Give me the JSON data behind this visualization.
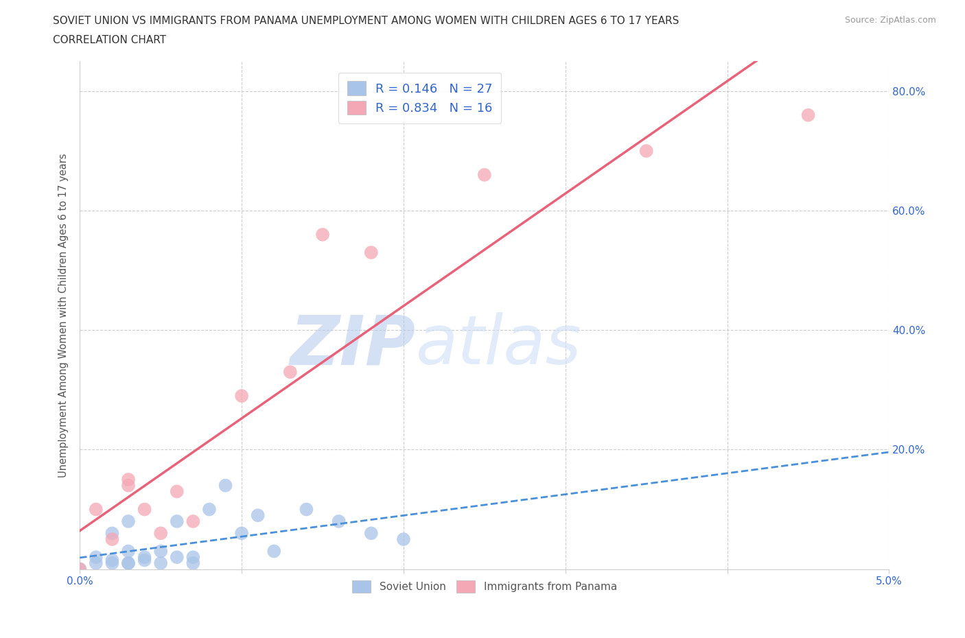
{
  "title_line1": "SOVIET UNION VS IMMIGRANTS FROM PANAMA UNEMPLOYMENT AMONG WOMEN WITH CHILDREN AGES 6 TO 17 YEARS",
  "title_line2": "CORRELATION CHART",
  "source_text": "Source: ZipAtlas.com",
  "ylabel": "Unemployment Among Women with Children Ages 6 to 17 years",
  "xlim": [
    0.0,
    0.05
  ],
  "ylim": [
    0.0,
    0.85
  ],
  "x_ticks": [
    0.0,
    0.01,
    0.02,
    0.03,
    0.04,
    0.05
  ],
  "x_tick_labels": [
    "0.0%",
    "",
    "",
    "",
    "",
    "5.0%"
  ],
  "y_ticks_right": [
    0.0,
    0.2,
    0.4,
    0.6,
    0.8
  ],
  "y_tick_labels_right": [
    "",
    "20.0%",
    "40.0%",
    "60.0%",
    "80.0%"
  ],
  "soviet_R": 0.146,
  "soviet_N": 27,
  "panama_R": 0.834,
  "panama_N": 16,
  "soviet_color": "#a8c4e8",
  "panama_color": "#f4a7b5",
  "soviet_line_color": "#4a90d9",
  "panama_line_color": "#e8637a",
  "background_color": "#ffffff",
  "watermark_zip": "ZIP",
  "watermark_atlas": "atlas",
  "watermark_color": "#c8d8f0",
  "soviet_x": [
    0.0,
    0.001,
    0.001,
    0.002,
    0.002,
    0.002,
    0.003,
    0.003,
    0.003,
    0.003,
    0.004,
    0.004,
    0.005,
    0.005,
    0.006,
    0.006,
    0.007,
    0.007,
    0.008,
    0.009,
    0.01,
    0.011,
    0.012,
    0.014,
    0.016,
    0.018,
    0.02
  ],
  "soviet_y": [
    0.0,
    0.01,
    0.02,
    0.01,
    0.015,
    0.06,
    0.01,
    0.01,
    0.03,
    0.08,
    0.015,
    0.02,
    0.01,
    0.03,
    0.02,
    0.08,
    0.01,
    0.02,
    0.1,
    0.14,
    0.06,
    0.09,
    0.03,
    0.1,
    0.08,
    0.06,
    0.05
  ],
  "panama_x": [
    0.0,
    0.001,
    0.002,
    0.003,
    0.003,
    0.004,
    0.005,
    0.006,
    0.007,
    0.01,
    0.013,
    0.015,
    0.018,
    0.025,
    0.035,
    0.045
  ],
  "panama_y": [
    0.0,
    0.1,
    0.05,
    0.15,
    0.14,
    0.1,
    0.06,
    0.13,
    0.08,
    0.29,
    0.33,
    0.56,
    0.53,
    0.66,
    0.7,
    0.76
  ]
}
